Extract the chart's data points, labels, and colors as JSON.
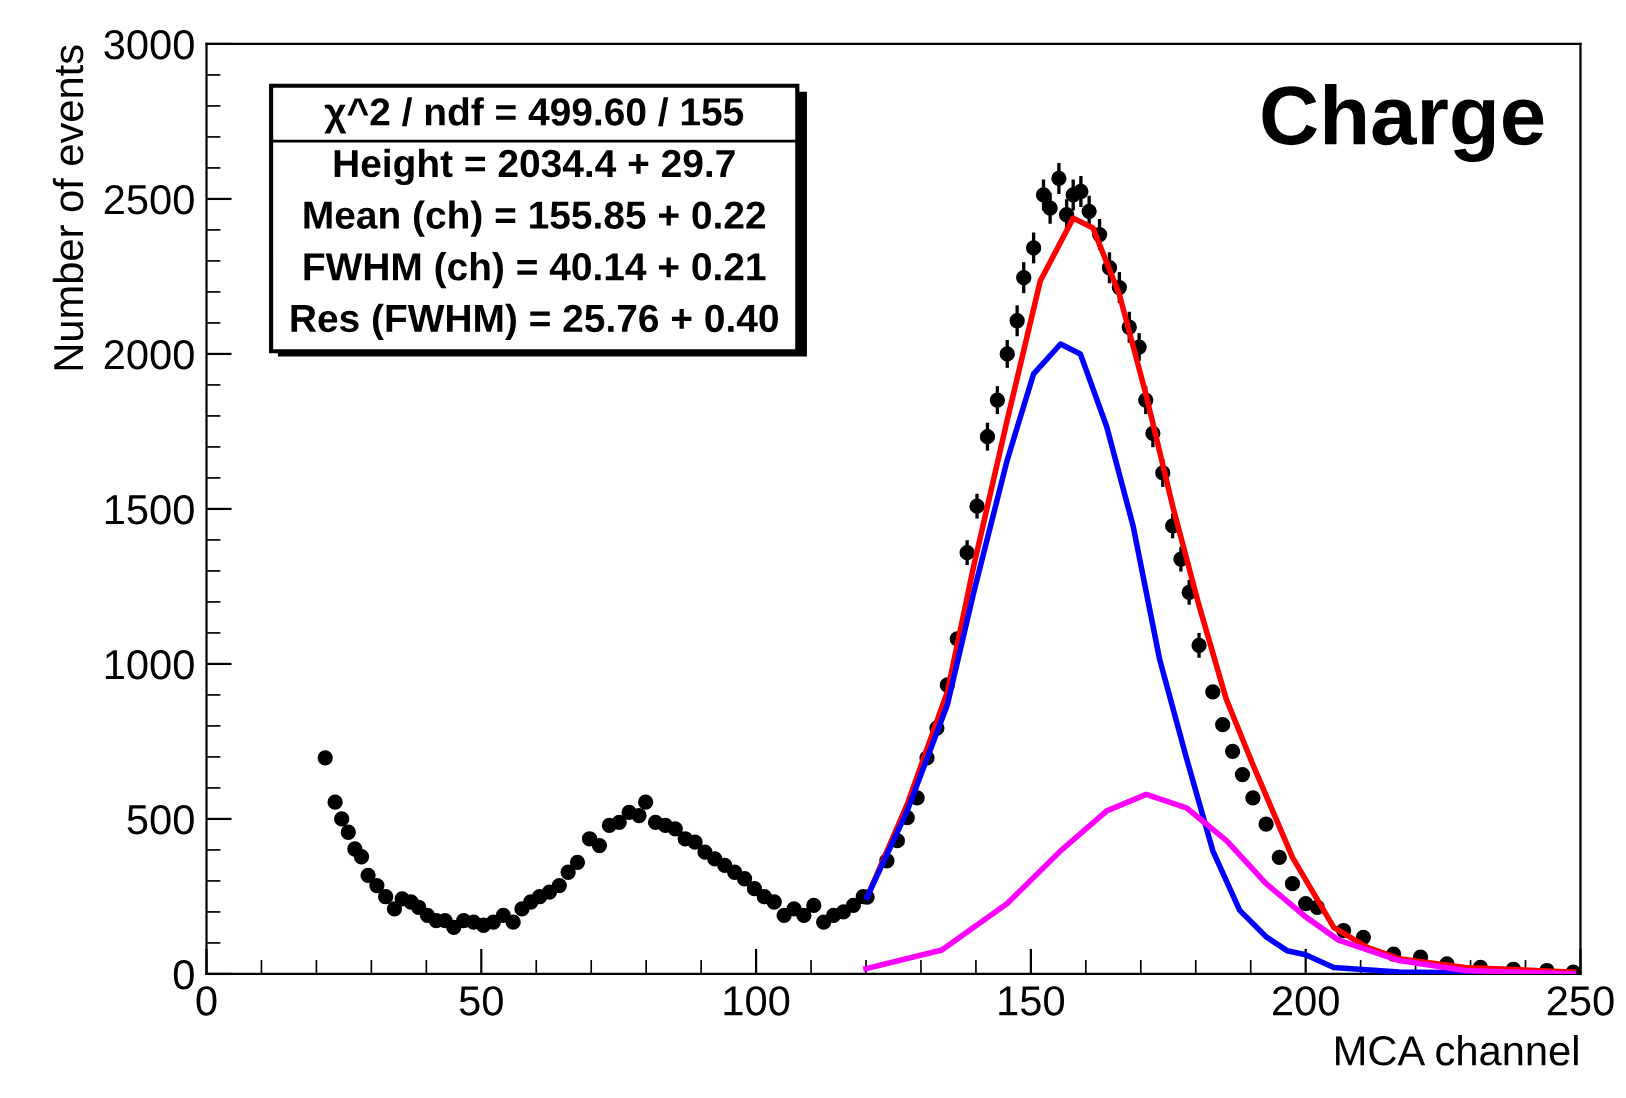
{
  "chart_data": {
    "type": "scatter",
    "xlabel": "MCA channel",
    "ylabel": "Number of events",
    "xlim": [
      0,
      250
    ],
    "ylim": [
      0,
      3000
    ],
    "xticks": [
      0,
      50,
      100,
      150,
      200,
      250
    ],
    "yticks": [
      0,
      500,
      1000,
      1500,
      2000,
      2500,
      3000
    ],
    "grid": false,
    "legend": false,
    "annotations": [
      "χ^2 / ndf = 499.60 / 155",
      "Height = 2034.4 + 29.7",
      "Mean (ch) = 155.85 + 0.22",
      "FWHM (ch) = 40.14 + 0.21",
      "Res (FWHM) = 25.76 + 0.40",
      "Charge"
    ],
    "series": [
      {
        "marker": "circle",
        "color": "#000000",
        "x": [
          21.6,
          23.4,
          24.6,
          25.8,
          27,
          28.2,
          29.4,
          31,
          32.6,
          34.2,
          35.6,
          37.2,
          38.6,
          40.2,
          41.8,
          43.4,
          45,
          46.8,
          48.6,
          50.4,
          52.2,
          54,
          55.8,
          57.4,
          59,
          60.6,
          62.4,
          64.2,
          65.8,
          67.5,
          69.7,
          71.5,
          73.3,
          75.1,
          76.9,
          78.7,
          79.9,
          81.7,
          83.5,
          85.3,
          87.1,
          88.9,
          90.7,
          92.5,
          94.3,
          96.1,
          97.9,
          99.7,
          101.5,
          103.3,
          105.1,
          106.9,
          108.7,
          110.5,
          112.3,
          114.1,
          115.9,
          117.7,
          119.5,
          120.2,
          123.8,
          125.7,
          127.5,
          129.3,
          131.1,
          132.9,
          134.8,
          136.6,
          138.4,
          140.2,
          142.1,
          143.9,
          145.7,
          147.5,
          148.7,
          150.5,
          152.3,
          153.5,
          155.1,
          156.5,
          157.7,
          159.1,
          160.6,
          162.5,
          164.3,
          166.1,
          167.9,
          169.7,
          170.9,
          172.2,
          174,
          175.8,
          177.3,
          178.8,
          180.6,
          183.1,
          184.9,
          186.7,
          188.5,
          190.4,
          192.8,
          195.2,
          197.6,
          200,
          202.1,
          206.9,
          210.5,
          216,
          220.9,
          225.7,
          231.8,
          237.8,
          243.9,
          248.7
        ],
        "values": [
          697,
          554,
          500,
          457,
          403,
          378,
          318,
          285,
          249,
          210,
          242,
          232,
          215,
          189,
          172,
          172,
          150,
          172,
          167,
          157,
          167,
          189,
          167,
          210,
          232,
          249,
          264,
          285,
          328,
          360,
          436,
          414,
          479,
          489,
          521,
          511,
          554,
          489,
          479,
          468,
          436,
          425,
          393,
          371,
          350,
          328,
          307,
          275,
          249,
          232,
          189,
          210,
          189,
          221,
          167,
          189,
          200,
          221,
          249,
          248,
          365,
          430,
          504,
          568,
          697,
          793,
          932,
          1081,
          1359,
          1509,
          1733,
          1851,
          2000,
          2107,
          2246,
          2342,
          2513,
          2470,
          2566,
          2449,
          2513,
          2524,
          2460,
          2385,
          2278,
          2214,
          2086,
          2022,
          1851,
          1744,
          1616,
          1445,
          1338,
          1231,
          1060,
          910,
          804,
          718,
          643,
          568,
          483,
          376,
          291,
          227,
          215,
          140,
          118,
          64,
          54,
          32,
          21,
          15,
          11,
          6
        ],
        "errors": [
          null,
          null,
          null,
          null,
          null,
          null,
          null,
          null,
          null,
          null,
          null,
          null,
          null,
          null,
          null,
          null,
          null,
          null,
          null,
          null,
          null,
          null,
          null,
          null,
          null,
          null,
          null,
          null,
          null,
          null,
          null,
          null,
          null,
          null,
          null,
          null,
          null,
          null,
          null,
          null,
          null,
          null,
          null,
          null,
          null,
          null,
          null,
          null,
          null,
          null,
          null,
          null,
          null,
          null,
          null,
          null,
          null,
          null,
          null,
          null,
          null,
          null,
          null,
          null,
          null,
          null,
          null,
          null,
          40,
          40,
          45,
          45,
          45,
          50,
          50,
          50,
          50,
          50,
          50,
          50,
          50,
          50,
          50,
          50,
          50,
          50,
          50,
          45,
          45,
          45,
          45,
          40,
          40,
          40,
          40,
          null,
          null,
          null,
          null,
          null,
          null,
          null,
          null,
          null,
          null,
          null,
          null,
          null,
          null,
          null,
          null,
          null,
          null,
          null
        ]
      },
      {
        "type": "line",
        "color": "#ff0000",
        "x": [
          120.2,
          127.5,
          134.8,
          139.6,
          145.7,
          151.7,
          157.7,
          161.3,
          166.1,
          170.9,
          175.8,
          180.6,
          185.5,
          190.4,
          197.6,
          205.1,
          211.2,
          217,
          229,
          248.7
        ],
        "values": [
          248,
          547,
          910,
          1316,
          1787,
          2235,
          2438,
          2406,
          2192,
          1872,
          1509,
          1188,
          889,
          675,
          376,
          150,
          86,
          49,
          21,
          6
        ]
      },
      {
        "type": "line",
        "color": "#0000ff",
        "x": [
          120.2,
          127.5,
          134.8,
          139.6,
          145.7,
          150.5,
          155.4,
          159,
          163.8,
          168.6,
          173.4,
          178.3,
          183.1,
          188,
          192.8,
          196.6,
          200,
          205.1,
          217,
          248.7
        ],
        "values": [
          248,
          526,
          868,
          1231,
          1658,
          1936,
          2032,
          2000,
          1765,
          1445,
          1017,
          697,
          397,
          205,
          120,
          75,
          62,
          21,
          6,
          0
        ]
      },
      {
        "type": "line",
        "color": "#ff00ff",
        "x": [
          120,
          133.8,
          145.7,
          155.4,
          163.8,
          171,
          178.3,
          185.6,
          192.8,
          200,
          206,
          217,
          229,
          248.7
        ],
        "values": [
          17,
          77,
          227,
          397,
          526,
          579,
          536,
          430,
          291,
          184,
          109,
          43,
          11,
          0
        ]
      }
    ]
  }
}
